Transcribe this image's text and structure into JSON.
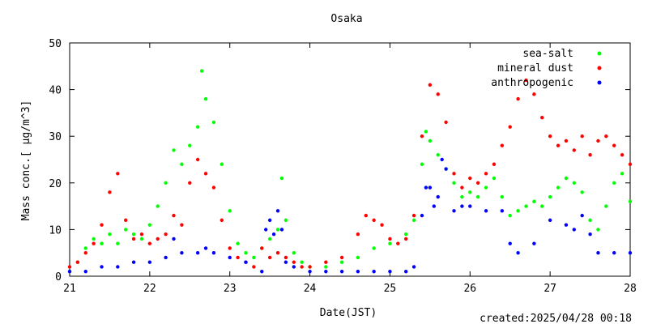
{
  "chart_data": {
    "type": "scatter",
    "title": "Osaka",
    "xlabel": "Date(JST)",
    "ylabel": "Mass conc.[ µg/m^3]",
    "footer": "created:2025/04/28 00:18",
    "xlim": [
      21,
      28
    ],
    "ylim": [
      0,
      50
    ],
    "xticks": [
      21,
      22,
      23,
      24,
      25,
      26,
      27,
      28
    ],
    "yticks": [
      0,
      10,
      20,
      30,
      40,
      50
    ],
    "grid": false,
    "legend_position": "top-right",
    "series": [
      {
        "name": "sea-salt",
        "color": "#00ff00",
        "x": [
          21.0,
          21.1,
          21.2,
          21.3,
          21.4,
          21.5,
          21.6,
          21.7,
          21.8,
          21.9,
          22.0,
          22.1,
          22.2,
          22.3,
          22.4,
          22.5,
          22.6,
          22.65,
          22.7,
          22.8,
          22.9,
          23.0,
          23.1,
          23.2,
          23.3,
          23.4,
          23.5,
          23.6,
          23.65,
          23.7,
          23.8,
          23.9,
          24.0,
          24.2,
          24.4,
          24.6,
          24.8,
          25.0,
          25.2,
          25.3,
          25.4,
          25.45,
          25.5,
          25.6,
          25.7,
          25.8,
          25.9,
          26.0,
          26.1,
          26.2,
          26.3,
          26.4,
          26.5,
          26.6,
          26.7,
          26.8,
          26.9,
          27.0,
          27.1,
          27.2,
          27.3,
          27.4,
          27.5,
          27.6,
          27.7,
          27.8,
          27.9,
          28.0
        ],
        "y": [
          1,
          3,
          6,
          8,
          7,
          9,
          7,
          10,
          9,
          8,
          11,
          15,
          20,
          27,
          24,
          28,
          32,
          44,
          38,
          33,
          24,
          14,
          7,
          5,
          4,
          6,
          8,
          10,
          21,
          12,
          5,
          3,
          2,
          2,
          3,
          4,
          6,
          7,
          9,
          12,
          24,
          31,
          29,
          26,
          23,
          20,
          17,
          18,
          17,
          19,
          21,
          17,
          13,
          14,
          15,
          16,
          15,
          17,
          19,
          21,
          20,
          18,
          12,
          10,
          15,
          20,
          22,
          16
        ]
      },
      {
        "name": "mineral dust",
        "color": "#ff0000",
        "x": [
          21.0,
          21.1,
          21.2,
          21.3,
          21.4,
          21.5,
          21.6,
          21.7,
          21.8,
          21.9,
          22.0,
          22.1,
          22.2,
          22.3,
          22.4,
          22.5,
          22.6,
          22.7,
          22.8,
          22.9,
          23.0,
          23.1,
          23.2,
          23.3,
          23.4,
          23.5,
          23.6,
          23.7,
          23.8,
          23.9,
          24.0,
          24.2,
          24.4,
          24.6,
          24.7,
          24.8,
          24.9,
          25.0,
          25.1,
          25.2,
          25.3,
          25.4,
          25.5,
          25.6,
          25.7,
          25.8,
          25.9,
          26.0,
          26.1,
          26.2,
          26.3,
          26.4,
          26.5,
          26.6,
          26.7,
          26.8,
          26.9,
          27.0,
          27.1,
          27.2,
          27.3,
          27.4,
          27.5,
          27.6,
          27.7,
          27.8,
          27.9,
          28.0
        ],
        "y": [
          2,
          3,
          5,
          7,
          11,
          18,
          22,
          12,
          8,
          9,
          7,
          8,
          9,
          13,
          11,
          20,
          25,
          22,
          19,
          12,
          6,
          4,
          3,
          2,
          6,
          4,
          5,
          4,
          3,
          2,
          2,
          3,
          4,
          9,
          13,
          12,
          11,
          8,
          7,
          8,
          13,
          30,
          41,
          39,
          33,
          22,
          19,
          21,
          20,
          22,
          24,
          28,
          32,
          38,
          42,
          39,
          34,
          30,
          28,
          29,
          27,
          30,
          26,
          29,
          30,
          28,
          26,
          24
        ]
      },
      {
        "name": "anthropogenic",
        "color": "#0000ff",
        "x": [
          21.0,
          21.2,
          21.4,
          21.6,
          21.8,
          22.0,
          22.2,
          22.3,
          22.4,
          22.6,
          22.7,
          22.8,
          23.0,
          23.2,
          23.4,
          23.45,
          23.5,
          23.55,
          23.6,
          23.65,
          23.7,
          23.8,
          24.0,
          24.2,
          24.4,
          24.6,
          24.8,
          25.0,
          25.2,
          25.3,
          25.4,
          25.45,
          25.5,
          25.55,
          25.6,
          25.65,
          25.7,
          25.8,
          25.9,
          26.0,
          26.2,
          26.4,
          26.5,
          26.6,
          26.8,
          27.0,
          27.2,
          27.3,
          27.4,
          27.5,
          27.6,
          27.8,
          28.0
        ],
        "y": [
          1,
          1,
          2,
          2,
          3,
          3,
          4,
          8,
          5,
          5,
          6,
          5,
          4,
          3,
          1,
          10,
          12,
          9,
          14,
          10,
          3,
          2,
          1,
          1,
          1,
          1,
          1,
          1,
          1,
          2,
          13,
          19,
          19,
          15,
          17,
          25,
          23,
          14,
          15,
          15,
          14,
          14,
          7,
          5,
          7,
          12,
          11,
          10,
          13,
          9,
          5,
          5,
          5
        ]
      }
    ]
  }
}
